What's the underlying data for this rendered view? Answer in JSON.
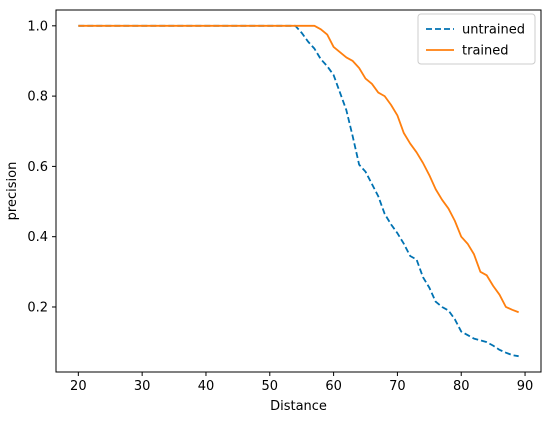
{
  "chart_data": {
    "type": "line",
    "xlabel": "Distance",
    "ylabel": "precision",
    "xlim": [
      16.5,
      92.5
    ],
    "ylim": [
      0.015,
      1.045
    ],
    "xticks": [
      20,
      30,
      40,
      50,
      60,
      70,
      80,
      90
    ],
    "yticks": [
      0.2,
      0.4,
      0.6,
      0.8,
      1.0
    ],
    "xtick_labels": [
      "20",
      "30",
      "40",
      "50",
      "60",
      "70",
      "80",
      "90"
    ],
    "ytick_labels": [
      "0.2",
      "0.4",
      "0.6",
      "0.8",
      "1.0"
    ],
    "grid": false,
    "legend_position": "top-right",
    "series": [
      {
        "name": "untrained",
        "color": "#0072b2",
        "style": "dashed",
        "x": [
          20,
          53,
          54,
          55,
          56,
          57,
          58,
          59,
          60,
          61,
          62,
          63,
          64,
          65,
          66,
          67,
          68,
          69,
          70,
          71,
          72,
          73,
          74,
          75,
          76,
          77,
          78,
          79,
          80,
          81,
          82,
          83,
          84,
          85,
          86,
          87,
          88,
          89
        ],
        "y": [
          1.0,
          1.0,
          1.0,
          0.98,
          0.955,
          0.935,
          0.905,
          0.885,
          0.86,
          0.81,
          0.76,
          0.685,
          0.605,
          0.585,
          0.55,
          0.515,
          0.465,
          0.435,
          0.41,
          0.38,
          0.345,
          0.335,
          0.285,
          0.255,
          0.215,
          0.2,
          0.19,
          0.165,
          0.13,
          0.12,
          0.11,
          0.105,
          0.1,
          0.09,
          0.078,
          0.07,
          0.063,
          0.06
        ]
      },
      {
        "name": "trained",
        "color": "#ff7f0e",
        "style": "solid",
        "x": [
          20,
          57,
          58,
          59,
          60,
          61,
          62,
          63,
          64,
          65,
          66,
          67,
          68,
          69,
          70,
          71,
          72,
          73,
          74,
          75,
          76,
          77,
          78,
          79,
          80,
          81,
          82,
          83,
          84,
          85,
          86,
          87,
          88,
          89
        ],
        "y": [
          1.0,
          1.0,
          0.99,
          0.975,
          0.94,
          0.925,
          0.91,
          0.9,
          0.88,
          0.85,
          0.835,
          0.81,
          0.8,
          0.775,
          0.745,
          0.695,
          0.665,
          0.64,
          0.61,
          0.575,
          0.535,
          0.505,
          0.48,
          0.445,
          0.4,
          0.38,
          0.35,
          0.3,
          0.29,
          0.26,
          0.235,
          0.2,
          0.192,
          0.185
        ]
      }
    ]
  }
}
